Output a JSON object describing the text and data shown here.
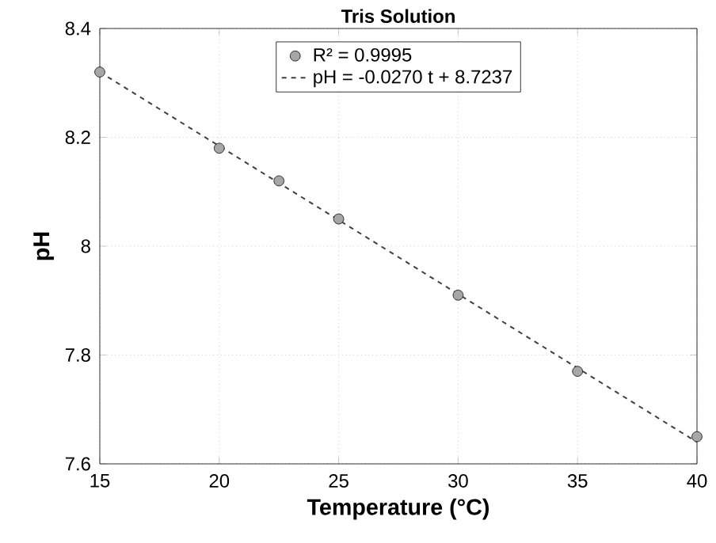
{
  "chart_data": {
    "type": "scatter",
    "title": "Tris Solution",
    "xlabel": "Temperature (°C)",
    "ylabel": "pH",
    "series": [
      {
        "name": "R² = 0.9995",
        "marker": "circle",
        "color": "#a6a6a6",
        "x": [
          15,
          20,
          22.5,
          25,
          30,
          35,
          40
        ],
        "values": [
          8.32,
          8.18,
          8.12,
          8.05,
          7.91,
          7.77,
          7.65
        ]
      },
      {
        "name": "pH = -0.0270 t + 8.7237",
        "type": "line",
        "color": "#404040",
        "line_style": "dashed",
        "marker": "none",
        "x": [
          15,
          40
        ],
        "values": [
          8.32,
          7.64
        ]
      }
    ],
    "xlim": [
      15,
      40
    ],
    "ylim": [
      7.6,
      8.4
    ],
    "xticks": [
      15,
      20,
      25,
      30,
      35,
      40
    ],
    "yticks": [
      7.6,
      7.8,
      8,
      8.2,
      8.4
    ],
    "grid": true,
    "legend": "top"
  }
}
